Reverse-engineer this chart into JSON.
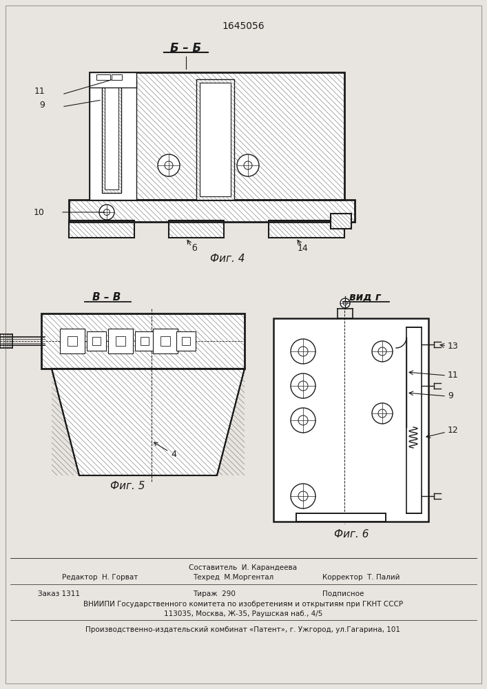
{
  "patent_number": "1645056",
  "bg_color": "#e8e5e0",
  "title_bb": "Б – Б",
  "title_vv": "В – В",
  "title_vidg": "вид г",
  "caption_fig4": "Фиг. 4",
  "caption_fig5": "Фиг. 5",
  "caption_fig6": "Фиг. 6",
  "footer_sostavitel": "Составитель  И. Карандеева",
  "footer_redaktor": "Редактор  Н. Горват",
  "footer_tehred": "Техред  М.Моргентал",
  "footer_korrektor": "Корректор  Т. Палий",
  "footer_zakaz": "Заказ 1311",
  "footer_tirazh": "Тираж  290",
  "footer_podpisnoe": "Подписное",
  "footer_vniip": "ВНИИПИ Государственного комитета по изобретениям и открытиям при ГКНТ СССР",
  "footer_address": "113035, Москва, Ж-35, Раушская наб., 4/5",
  "footer_patent": "Производственно-издательский комбинат «Патент», г. Ужгород, ул.Гагарина, 101",
  "lc": "#1a1a1a",
  "hc": "#777777"
}
